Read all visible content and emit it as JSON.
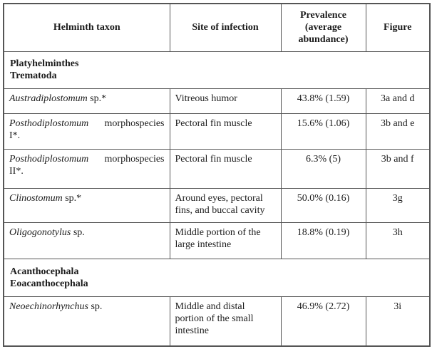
{
  "page": {
    "background": "#ffffff",
    "border_color": "#555555",
    "text_color": "#1c1c1c"
  },
  "table": {
    "columns": [
      "Helminth taxon",
      "Site of infection",
      "Prevalence (average abundance)",
      "Figure"
    ],
    "section1": {
      "line1": "Platyhelminthes",
      "line2": "Trematoda"
    },
    "section2": {
      "line1": "Acanthocephala",
      "line2": "Eoacanthocephala"
    },
    "rows": [
      {
        "genus": "Austradiplostomum",
        "suffix": " sp.*",
        "site": "Vitreous humor",
        "prevalence": "43.8% (1.59)",
        "figure": "3a and d"
      },
      {
        "genus": "Posthodiplostomum",
        "taxon_word2": "morphospecies",
        "taxon_line2": "I*.",
        "site": "Pectoral fin muscle",
        "prevalence": "15.6% (1.06)",
        "figure": "3b and e"
      },
      {
        "genus": "Posthodiplostomum",
        "taxon_word2": "morphospecies",
        "taxon_line2": "II*.",
        "site": "Pectoral fin muscle",
        "prevalence": "6.3% (5)",
        "figure": "3b and f"
      },
      {
        "genus": "Clinostomum",
        "suffix": " sp.*",
        "site": "Around eyes, pectoral fins, and buccal cavity",
        "prevalence": "50.0% (0.16)",
        "figure": "3g"
      },
      {
        "genus": "Oligogonotylus",
        "suffix": " sp.",
        "site": "Middle portion of the large intestine",
        "prevalence": "18.8% (0.19)",
        "figure": "3h"
      },
      {
        "genus": "Neoechinorhynchus",
        "suffix": " sp.",
        "site": "Middle and distal portion of the small intestine",
        "prevalence": "46.9% (2.72)",
        "figure": "3i"
      }
    ]
  }
}
